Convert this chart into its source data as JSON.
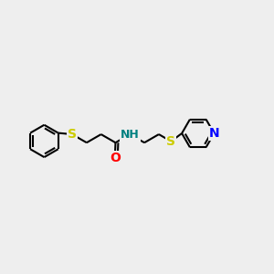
{
  "bg_color": "#eeeeee",
  "bond_color": "#000000",
  "S_color": "#cccc00",
  "O_color": "#ff0000",
  "N_color": "#0000ff",
  "NH_color": "#008080",
  "line_width": 1.5,
  "font_size": 10,
  "fig_size": [
    3.0,
    3.0
  ],
  "dpi": 100,
  "xlim": [
    0,
    10
  ],
  "ylim": [
    2,
    8
  ]
}
